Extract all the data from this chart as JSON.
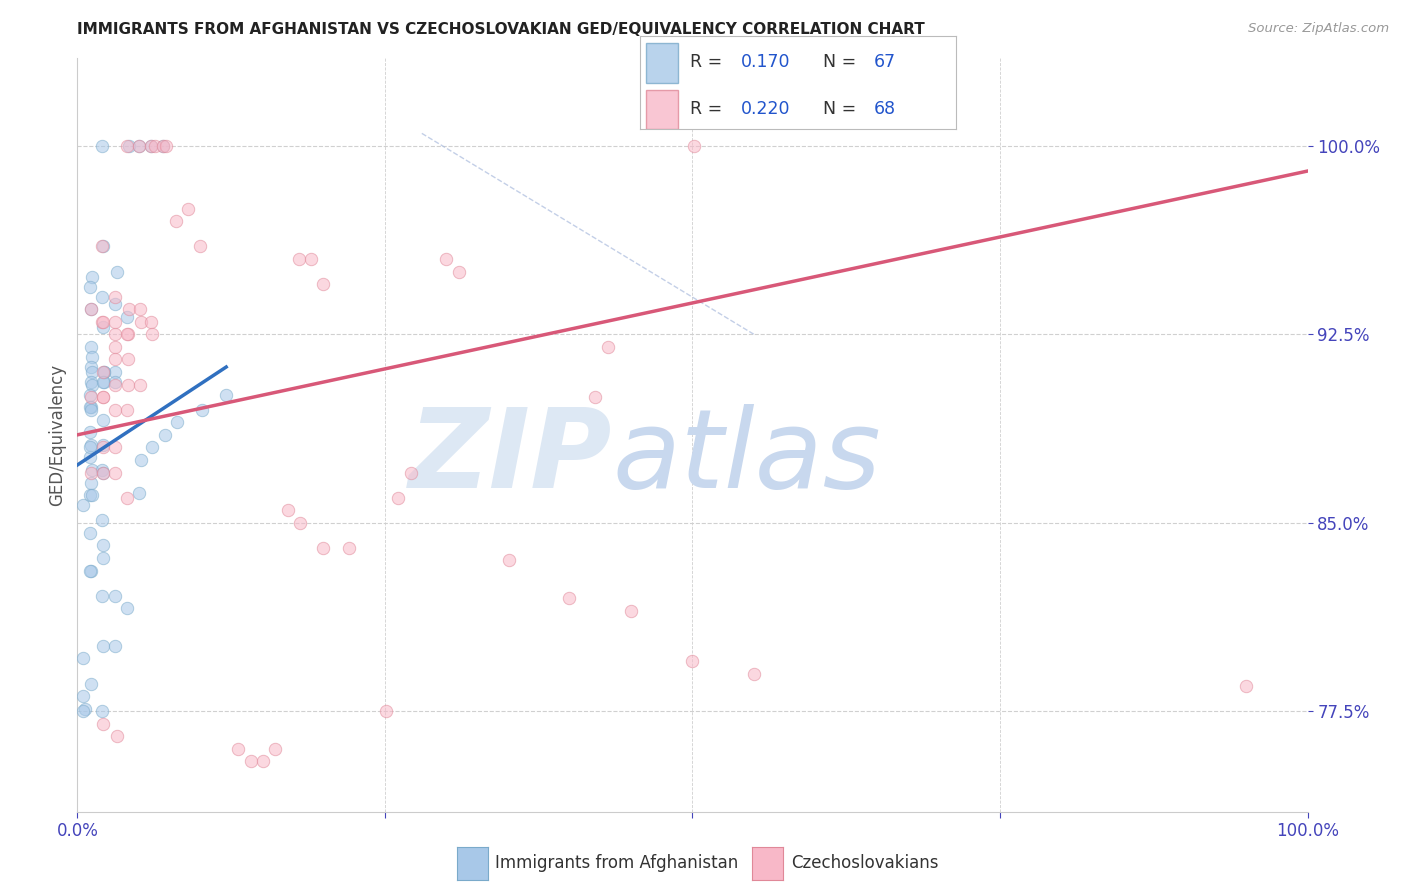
{
  "title": "IMMIGRANTS FROM AFGHANISTAN VS CZECHOSLOVAKIAN GED/EQUIVALENCY CORRELATION CHART",
  "source": "Source: ZipAtlas.com",
  "ylabel": "GED/Equivalency",
  "yticks": [
    0.775,
    0.85,
    0.925,
    1.0
  ],
  "ytick_labels": [
    "77.5%",
    "85.0%",
    "92.5%",
    "100.0%"
  ],
  "xtick_labels": [
    "0.0%",
    "",
    "",
    "",
    "100.0%"
  ],
  "xmin": 0.0,
  "xmax": 1.0,
  "ymin": 0.735,
  "ymax": 1.035,
  "blue_scatter_x": [
    0.02,
    0.042,
    0.05,
    0.06,
    0.07,
    0.021,
    0.032,
    0.012,
    0.01,
    0.02,
    0.031,
    0.04,
    0.011,
    0.021,
    0.011,
    0.012,
    0.011,
    0.022,
    0.031,
    0.012,
    0.011,
    0.022,
    0.012,
    0.022,
    0.021,
    0.031,
    0.01,
    0.011,
    0.01,
    0.011,
    0.021,
    0.01,
    0.011,
    0.01,
    0.012,
    0.021,
    0.01,
    0.02,
    0.021,
    0.011,
    0.01,
    0.012,
    0.005,
    0.02,
    0.01,
    0.021,
    0.021,
    0.011,
    0.01,
    0.02,
    0.031,
    0.04,
    0.021,
    0.031,
    0.005,
    0.011,
    0.005,
    0.006,
    0.005,
    0.02,
    0.05,
    0.052,
    0.061,
    0.071,
    0.081,
    0.101,
    0.121
  ],
  "blue_scatter_y": [
    1.0,
    1.0,
    1.0,
    1.0,
    1.0,
    0.96,
    0.95,
    0.948,
    0.944,
    0.94,
    0.937,
    0.932,
    0.935,
    0.928,
    0.92,
    0.916,
    0.912,
    0.91,
    0.91,
    0.91,
    0.906,
    0.906,
    0.905,
    0.91,
    0.906,
    0.906,
    0.901,
    0.896,
    0.896,
    0.895,
    0.891,
    0.886,
    0.881,
    0.876,
    0.871,
    0.881,
    0.88,
    0.871,
    0.87,
    0.866,
    0.861,
    0.861,
    0.857,
    0.851,
    0.846,
    0.841,
    0.836,
    0.831,
    0.831,
    0.821,
    0.821,
    0.816,
    0.801,
    0.801,
    0.796,
    0.786,
    0.781,
    0.776,
    0.775,
    0.775,
    0.862,
    0.875,
    0.88,
    0.885,
    0.89,
    0.895,
    0.901
  ],
  "pink_scatter_x": [
    0.04,
    0.05,
    0.06,
    0.063,
    0.07,
    0.072,
    0.08,
    0.09,
    0.1,
    0.18,
    0.19,
    0.2,
    0.3,
    0.31,
    0.02,
    0.031,
    0.042,
    0.052,
    0.06,
    0.02,
    0.031,
    0.041,
    0.051,
    0.061,
    0.011,
    0.021,
    0.031,
    0.04,
    0.031,
    0.041,
    0.021,
    0.031,
    0.041,
    0.051,
    0.021,
    0.031,
    0.011,
    0.021,
    0.031,
    0.04,
    0.021,
    0.031,
    0.011,
    0.021,
    0.031,
    0.04,
    0.171,
    0.181,
    0.2,
    0.221,
    0.351,
    0.4,
    0.45,
    0.5,
    0.55,
    0.95,
    0.021,
    0.032,
    0.131,
    0.141,
    0.151,
    0.161,
    0.251,
    0.261,
    0.271,
    0.421,
    0.431,
    0.501
  ],
  "pink_scatter_y": [
    1.0,
    1.0,
    1.0,
    1.0,
    1.0,
    1.0,
    0.97,
    0.975,
    0.96,
    0.955,
    0.955,
    0.945,
    0.955,
    0.95,
    0.96,
    0.94,
    0.935,
    0.93,
    0.93,
    0.93,
    0.925,
    0.925,
    0.935,
    0.925,
    0.935,
    0.93,
    0.93,
    0.925,
    0.92,
    0.915,
    0.91,
    0.915,
    0.905,
    0.905,
    0.9,
    0.905,
    0.9,
    0.9,
    0.895,
    0.895,
    0.88,
    0.88,
    0.87,
    0.87,
    0.87,
    0.86,
    0.855,
    0.85,
    0.84,
    0.84,
    0.835,
    0.82,
    0.815,
    0.795,
    0.79,
    0.785,
    0.77,
    0.765,
    0.76,
    0.755,
    0.755,
    0.76,
    0.775,
    0.86,
    0.87,
    0.9,
    0.92,
    1.0
  ],
  "blue_line_x": [
    0.0,
    0.121
  ],
  "blue_line_y": [
    0.873,
    0.912
  ],
  "pink_line_x": [
    0.0,
    1.0
  ],
  "pink_line_y": [
    0.885,
    0.99
  ],
  "dashed_line_x": [
    0.28,
    0.55
  ],
  "dashed_line_y": [
    1.005,
    0.925
  ],
  "blue_fill_color": "#a8c8e8",
  "blue_edge_color": "#7aaaca",
  "pink_fill_color": "#f8b8c8",
  "pink_edge_color": "#e08898",
  "blue_reg_color": "#3070c0",
  "pink_reg_color": "#d85878",
  "grid_color": "#d0d0d0",
  "axis_tick_color": "#4444bb",
  "watermark_zip_color": "#dde8f4",
  "watermark_atlas_color": "#c8d8ee",
  "marker_size": 80,
  "R_blue": "0.170",
  "N_blue": "67",
  "R_pink": "0.220",
  "N_pink": "68",
  "legend_label_blue": "Immigrants from Afghanistan",
  "legend_label_pink": "Czechoslovakians",
  "legend_text_color": "#333333",
  "legend_value_color": "#2255cc"
}
